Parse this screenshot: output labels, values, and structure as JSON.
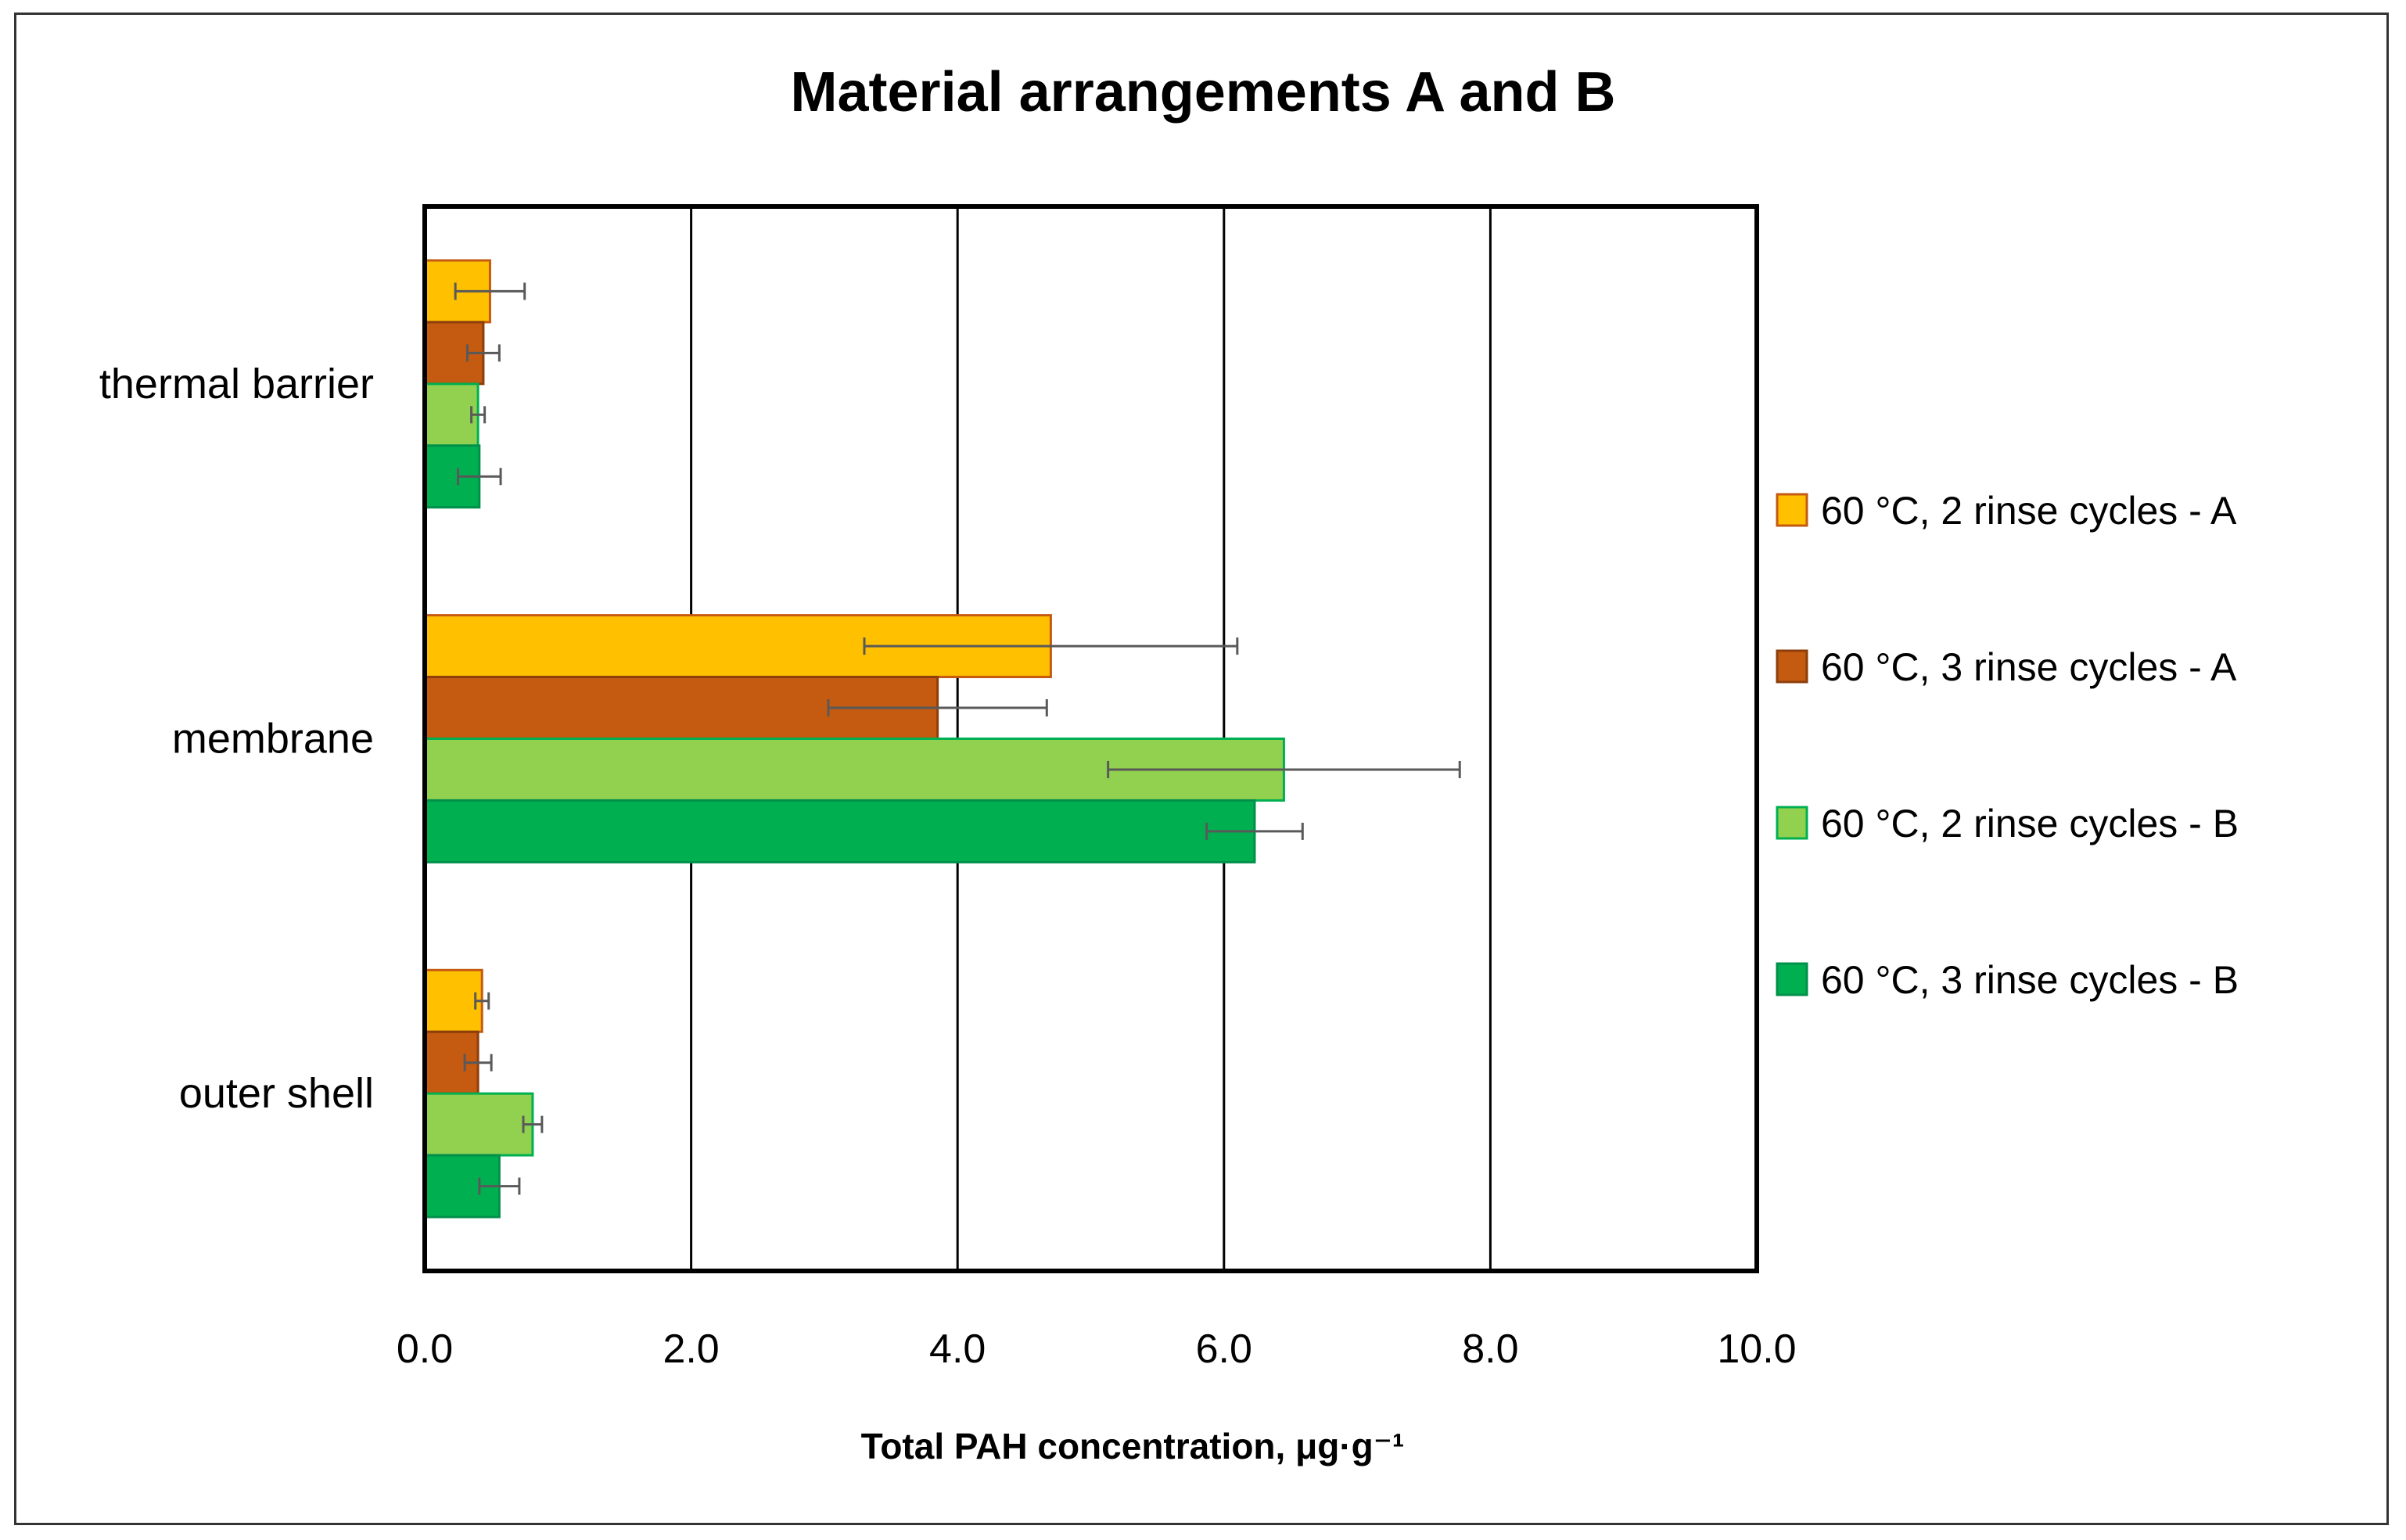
{
  "chart_data": {
    "type": "bar",
    "orientation": "horizontal",
    "title": "Material arrangements A and B",
    "xlabel": "Total PAH concentration, μg·g⁻¹",
    "ylabel": "",
    "xlim": [
      0,
      10
    ],
    "x_ticks": [
      0,
      2,
      4,
      6,
      8,
      10
    ],
    "x_tick_labels": [
      "0.0",
      "2.0",
      "4.0",
      "6.0",
      "8.0",
      "10.0"
    ],
    "grid": true,
    "legend_position": "right",
    "categories": [
      "thermal barrier",
      "membrane",
      "outer shell"
    ],
    "series": [
      {
        "name": "60 °C, 2 rinse cycles -  A",
        "color": "#FFC000",
        "edge": "#C55A11",
        "values": [
          0.49,
          4.7,
          0.43
        ],
        "errors": [
          0.26,
          1.4,
          0.05
        ]
      },
      {
        "name": "60 °C, 3 rinse  cycles -  A",
        "color": "#C55A11",
        "edge": "#8C3F0C",
        "values": [
          0.44,
          3.85,
          0.4
        ],
        "errors": [
          0.12,
          0.82,
          0.1
        ]
      },
      {
        "name": "60 °C, 2 rinse cycles  -  B",
        "color": "#92D050",
        "edge": "#00B050",
        "values": [
          0.4,
          6.45,
          0.81
        ],
        "errors": [
          0.05,
          1.32,
          0.07
        ]
      },
      {
        "name": "60 °C, 3 rinse cycles -  B",
        "color": "#00B050",
        "edge": "#00904A",
        "values": [
          0.41,
          6.23,
          0.56
        ],
        "errors": [
          0.16,
          0.36,
          0.15
        ]
      }
    ]
  }
}
